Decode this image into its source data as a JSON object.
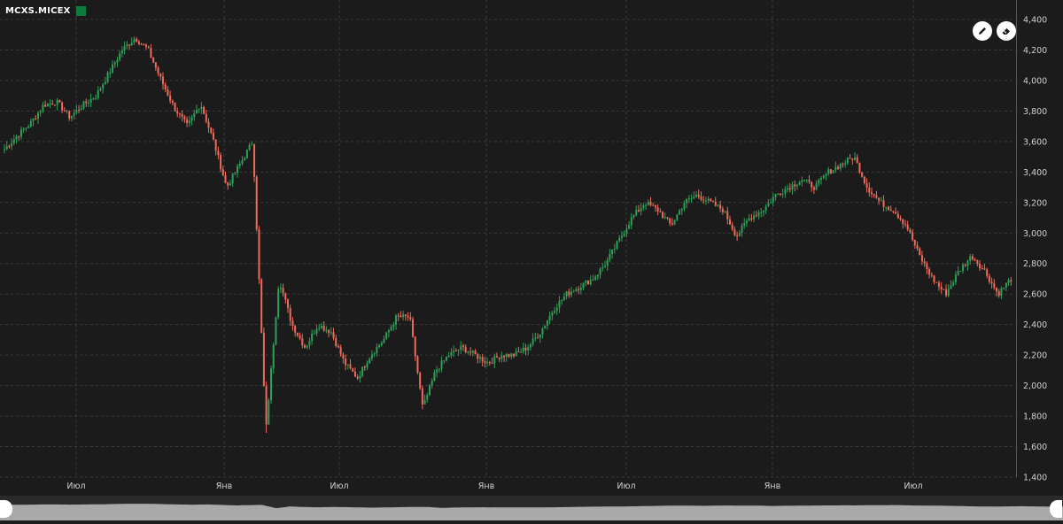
{
  "legend": {
    "ticker": "MCXS.MICEX",
    "swatch_color": "#0f7a3d"
  },
  "toolbar": {
    "pencil_icon": "pencil-icon",
    "eraser_icon": "eraser-icon"
  },
  "colors": {
    "up": "#2f9e58",
    "down": "#ef6a5a",
    "grid": "#3a3a3a",
    "axis_text": "#d0d0d0",
    "navigator_fill": "#a9a9a9"
  },
  "chart_data": {
    "type": "candlestick",
    "title": "",
    "series_name": "MCXS.MICEX",
    "ylim": [
      1400,
      4400
    ],
    "yticks": [
      "1,400",
      "1,600",
      "1,800",
      "2,000",
      "2,200",
      "2,400",
      "2,600",
      "2,800",
      "3,000",
      "3,200",
      "3,400",
      "3,600",
      "3,800",
      "4,000",
      "4,200",
      "4,400"
    ],
    "xticks": [
      "Июл",
      "Янв",
      "Июл",
      "Янв",
      "Июл",
      "Янв",
      "Июл"
    ],
    "grid": true,
    "price_path": [
      3550,
      3640,
      3720,
      3840,
      3860,
      3760,
      3840,
      3900,
      4050,
      4200,
      4280,
      4200,
      4000,
      3820,
      3700,
      3850,
      3600,
      3300,
      3450,
      3600,
      1700,
      2700,
      2400,
      2250,
      2400,
      2350,
      2150,
      2050,
      2200,
      2300,
      2450,
      2450,
      1850,
      2100,
      2200,
      2250,
      2200,
      2150,
      2200,
      2200,
      2250,
      2350,
      2500,
      2600,
      2650,
      2700,
      2800,
      2950,
      3100,
      3200,
      3150,
      3050,
      3200,
      3250,
      3200,
      3150,
      2980,
      3100,
      3150,
      3250,
      3300,
      3350,
      3300,
      3400,
      3450,
      3500,
      3300,
      3200,
      3150,
      3050,
      2850,
      2700,
      2600,
      2750,
      2850,
      2750,
      2600,
      2700
    ],
    "low_spike": 1690
  }
}
